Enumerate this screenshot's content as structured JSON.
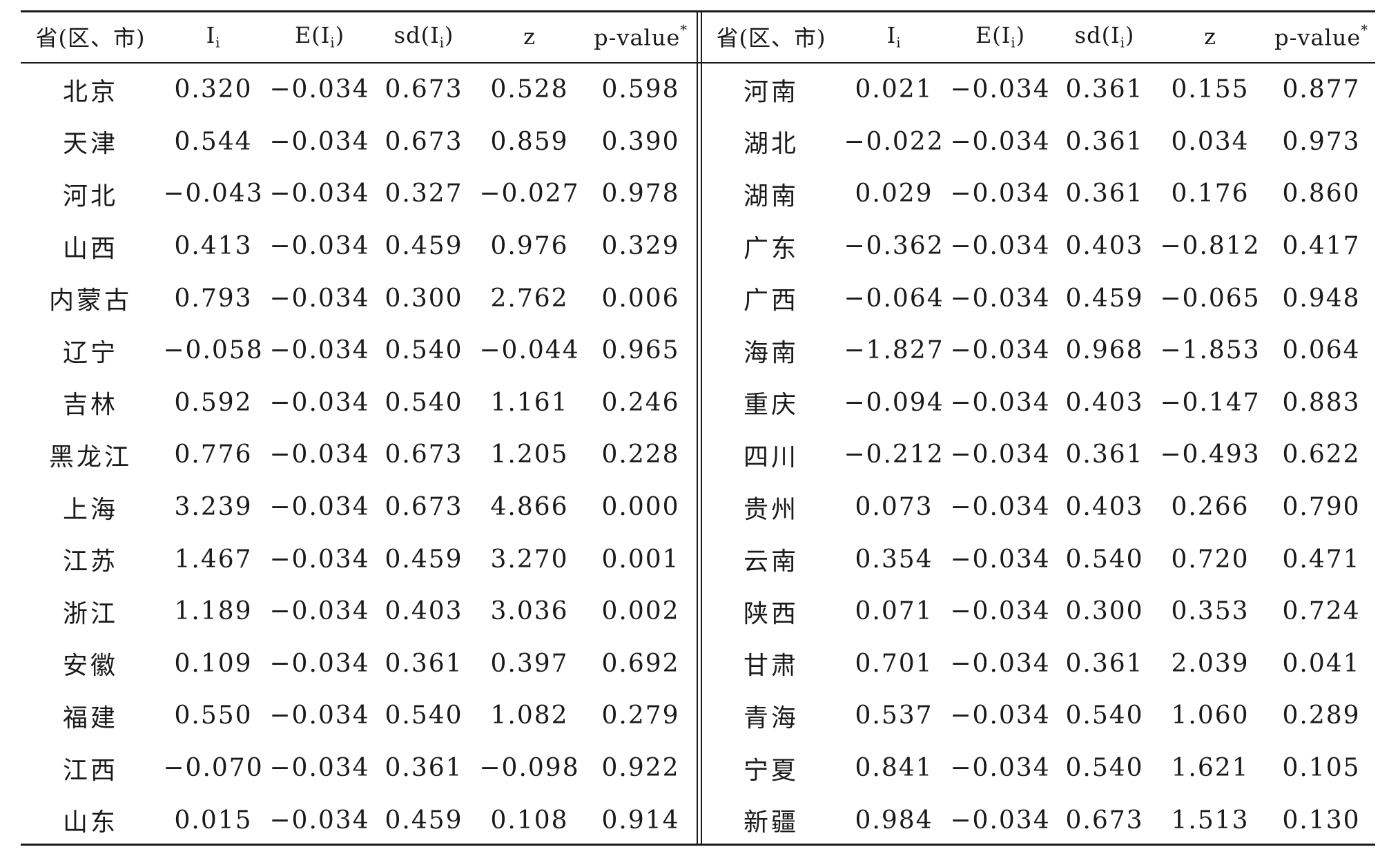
{
  "table": {
    "headers": {
      "region": "省(区、市)",
      "I": "I",
      "I_sub": "i",
      "E_pre": "E(I",
      "E_sub": "i",
      "E_post": ")",
      "sd_pre": "sd(I",
      "sd_sub": "i",
      "sd_post": ")",
      "z": "z",
      "p": "p-value",
      "p_sup": "*"
    },
    "left_rows": [
      {
        "name": "北京",
        "I": "0.320",
        "E": "−0.034",
        "sd": "0.673",
        "z": "0.528",
        "p": "0.598"
      },
      {
        "name": "天津",
        "I": "0.544",
        "E": "−0.034",
        "sd": "0.673",
        "z": "0.859",
        "p": "0.390"
      },
      {
        "name": "河北",
        "I": "−0.043",
        "E": "−0.034",
        "sd": "0.327",
        "z": "−0.027",
        "p": "0.978"
      },
      {
        "name": "山西",
        "I": "0.413",
        "E": "−0.034",
        "sd": "0.459",
        "z": "0.976",
        "p": "0.329"
      },
      {
        "name": "内蒙古",
        "I": "0.793",
        "E": "−0.034",
        "sd": "0.300",
        "z": "2.762",
        "p": "0.006"
      },
      {
        "name": "辽宁",
        "I": "−0.058",
        "E": "−0.034",
        "sd": "0.540",
        "z": "−0.044",
        "p": "0.965"
      },
      {
        "name": "吉林",
        "I": "0.592",
        "E": "−0.034",
        "sd": "0.540",
        "z": "1.161",
        "p": "0.246"
      },
      {
        "name": "黑龙江",
        "I": "0.776",
        "E": "−0.034",
        "sd": "0.673",
        "z": "1.205",
        "p": "0.228"
      },
      {
        "name": "上海",
        "I": "3.239",
        "E": "−0.034",
        "sd": "0.673",
        "z": "4.866",
        "p": "0.000"
      },
      {
        "name": "江苏",
        "I": "1.467",
        "E": "−0.034",
        "sd": "0.459",
        "z": "3.270",
        "p": "0.001"
      },
      {
        "name": "浙江",
        "I": "1.189",
        "E": "−0.034",
        "sd": "0.403",
        "z": "3.036",
        "p": "0.002"
      },
      {
        "name": "安徽",
        "I": "0.109",
        "E": "−0.034",
        "sd": "0.361",
        "z": "0.397",
        "p": "0.692"
      },
      {
        "name": "福建",
        "I": "0.550",
        "E": "−0.034",
        "sd": "0.540",
        "z": "1.082",
        "p": "0.279"
      },
      {
        "name": "江西",
        "I": "−0.070",
        "E": "−0.034",
        "sd": "0.361",
        "z": "−0.098",
        "p": "0.922"
      },
      {
        "name": "山东",
        "I": "0.015",
        "E": "−0.034",
        "sd": "0.459",
        "z": "0.108",
        "p": "0.914"
      }
    ],
    "right_rows": [
      {
        "name": "河南",
        "I": "0.021",
        "E": "−0.034",
        "sd": "0.361",
        "z": "0.155",
        "p": "0.877"
      },
      {
        "name": "湖北",
        "I": "−0.022",
        "E": "−0.034",
        "sd": "0.361",
        "z": "0.034",
        "p": "0.973"
      },
      {
        "name": "湖南",
        "I": "0.029",
        "E": "−0.034",
        "sd": "0.361",
        "z": "0.176",
        "p": "0.860"
      },
      {
        "name": "广东",
        "I": "−0.362",
        "E": "−0.034",
        "sd": "0.403",
        "z": "−0.812",
        "p": "0.417"
      },
      {
        "name": "广西",
        "I": "−0.064",
        "E": "−0.034",
        "sd": "0.459",
        "z": "−0.065",
        "p": "0.948"
      },
      {
        "name": "海南",
        "I": "−1.827",
        "E": "−0.034",
        "sd": "0.968",
        "z": "−1.853",
        "p": "0.064"
      },
      {
        "name": "重庆",
        "I": "−0.094",
        "E": "−0.034",
        "sd": "0.403",
        "z": "−0.147",
        "p": "0.883"
      },
      {
        "name": "四川",
        "I": "−0.212",
        "E": "−0.034",
        "sd": "0.361",
        "z": "−0.493",
        "p": "0.622"
      },
      {
        "name": "贵州",
        "I": "0.073",
        "E": "−0.034",
        "sd": "0.403",
        "z": "0.266",
        "p": "0.790"
      },
      {
        "name": "云南",
        "I": "0.354",
        "E": "−0.034",
        "sd": "0.540",
        "z": "0.720",
        "p": "0.471"
      },
      {
        "name": "陕西",
        "I": "0.071",
        "E": "−0.034",
        "sd": "0.300",
        "z": "0.353",
        "p": "0.724"
      },
      {
        "name": "甘肃",
        "I": "0.701",
        "E": "−0.034",
        "sd": "0.361",
        "z": "2.039",
        "p": "0.041"
      },
      {
        "name": "青海",
        "I": "0.537",
        "E": "−0.034",
        "sd": "0.540",
        "z": "1.060",
        "p": "0.289"
      },
      {
        "name": "宁夏",
        "I": "0.841",
        "E": "−0.034",
        "sd": "0.540",
        "z": "1.621",
        "p": "0.105"
      },
      {
        "name": "新疆",
        "I": "0.984",
        "E": "−0.034",
        "sd": "0.673",
        "z": "1.513",
        "p": "0.130"
      }
    ]
  }
}
